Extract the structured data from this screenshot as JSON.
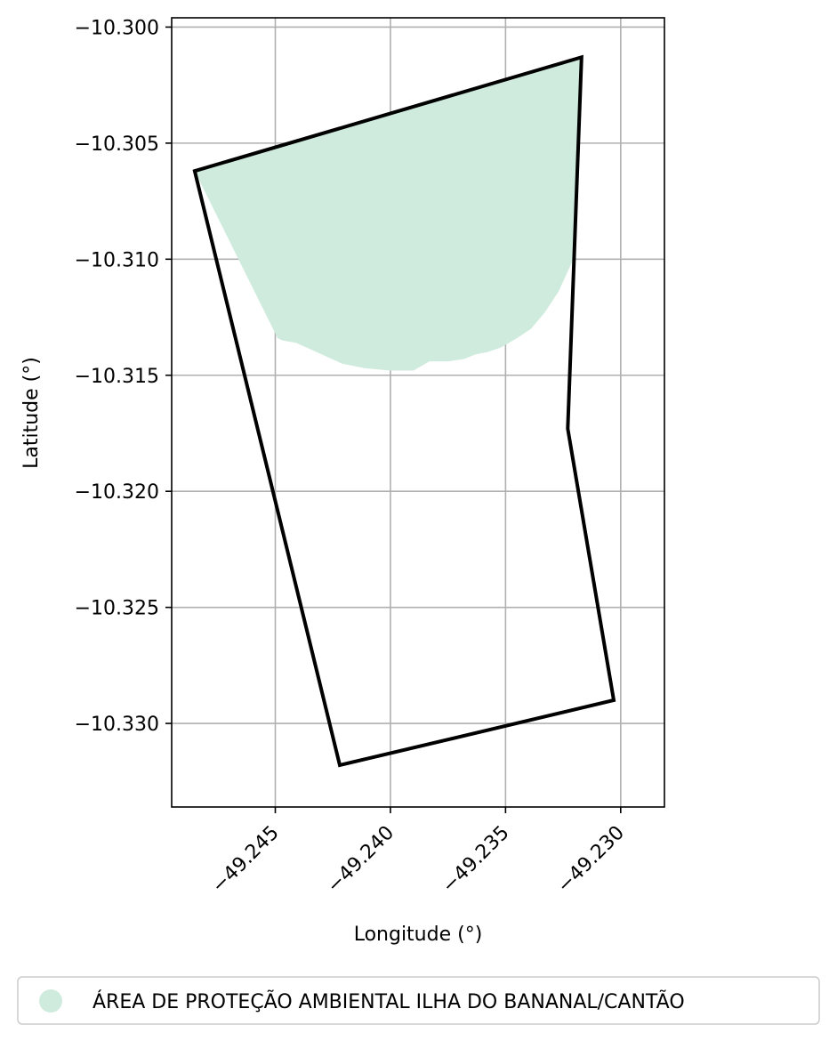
{
  "chart_data": {
    "type": "map",
    "xlabel": "Longitude (°)",
    "ylabel": "Latitude (°)",
    "xlim": [
      -49.2495,
      -49.2281
    ],
    "ylim": [
      -10.3336,
      -10.2996
    ],
    "x_ticks": [
      -49.245,
      -49.24,
      -49.235,
      -49.23
    ],
    "x_tick_labels": [
      "−49.245",
      "−49.240",
      "−49.235",
      "−49.230"
    ],
    "y_ticks": [
      -10.3,
      -10.305,
      -10.31,
      -10.315,
      -10.32,
      -10.325,
      -10.33
    ],
    "y_tick_labels": [
      "−10.300",
      "−10.305",
      "−10.310",
      "−10.315",
      "−10.320",
      "−10.325",
      "−10.330"
    ],
    "grid": true,
    "legend_placement": "bottom",
    "boundary": {
      "color": "#000000",
      "points": [
        [
          -49.2485,
          -10.3062
        ],
        [
          -49.2317,
          -10.3013
        ],
        [
          -49.2323,
          -10.3173
        ],
        [
          -49.2303,
          -10.329
        ],
        [
          -49.2422,
          -10.3318
        ],
        [
          -49.2485,
          -10.3062
        ]
      ]
    },
    "protected_area": {
      "name": "ÁREA DE PROTEÇÃO AMBIENTAL ILHA DO BANANAL/CANTÃO",
      "color": "#cfebdd",
      "points": [
        [
          -49.2485,
          -10.3062
        ],
        [
          -49.2317,
          -10.3013
        ],
        [
          -49.2319,
          -10.3066
        ],
        [
          -49.2321,
          -10.3101
        ],
        [
          -49.2327,
          -10.3114
        ],
        [
          -49.2333,
          -10.3123
        ],
        [
          -49.2339,
          -10.313
        ],
        [
          -49.2345,
          -10.3134
        ],
        [
          -49.2352,
          -10.3138
        ],
        [
          -49.2358,
          -10.314
        ],
        [
          -49.2363,
          -10.3141
        ],
        [
          -49.2368,
          -10.3143
        ],
        [
          -49.2375,
          -10.3144
        ],
        [
          -49.2383,
          -10.3144
        ],
        [
          -49.239,
          -10.3148
        ],
        [
          -49.24,
          -10.3148
        ],
        [
          -49.2411,
          -10.3147
        ],
        [
          -49.2421,
          -10.3145
        ],
        [
          -49.2432,
          -10.314
        ],
        [
          -49.2441,
          -10.3136
        ],
        [
          -49.2447,
          -10.3135
        ],
        [
          -49.2449,
          -10.3134
        ]
      ]
    }
  }
}
